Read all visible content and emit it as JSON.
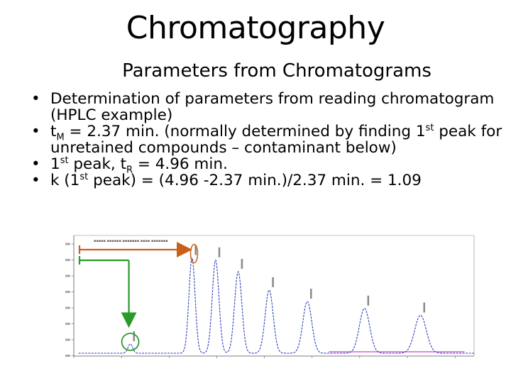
{
  "slide": {
    "title": "Chromatography",
    "subtitle": "Parameters from Chromatograms"
  },
  "bullets": [
    {
      "text": "Determination of parameters from reading chromatogram (HPLC example)"
    },
    {
      "pre": "t",
      "sub": "M",
      "post": " = 2.37 min.  (normally determined by finding 1",
      "sup": "st",
      "post2": " peak for unretained compounds – contaminant below)"
    },
    {
      "pre": "1",
      "sup": "st",
      "mid": " peak, t",
      "sub": "R",
      "post": " = 4.96 min."
    },
    {
      "pre": "k (1",
      "sup": "st",
      "post": " peak) = (4.96 -2.37 min.)/2.37 min. = 1.09"
    }
  ],
  "chart_data": {
    "type": "line",
    "series": [
      {
        "peaks": [
          {
            "t": 2.37,
            "height": 0.08
          },
          {
            "t": 4.96,
            "height": 0.83
          },
          {
            "t": 5.95,
            "height": 0.81
          },
          {
            "t": 6.9,
            "height": 0.71
          },
          {
            "t": 8.2,
            "height": 0.55
          },
          {
            "t": 9.8,
            "height": 0.45
          },
          {
            "t": 12.2,
            "height": 0.39
          },
          {
            "t": 14.55,
            "height": 0.33
          }
        ]
      }
    ],
    "colors": {
      "trace": "#2a3fb8",
      "baseline": "#d13fd0",
      "arrow": "#c8601a",
      "marker": "#2a9a2a"
    }
  }
}
